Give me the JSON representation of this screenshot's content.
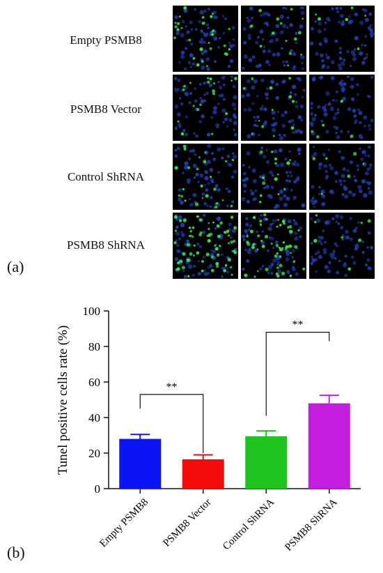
{
  "panel_a": {
    "tag": "(a)",
    "rows": [
      {
        "label": "Empty PSMB8",
        "green": [
          28,
          14,
          6
        ]
      },
      {
        "label": "PSMB8 Vector",
        "green": [
          18,
          12,
          5
        ]
      },
      {
        "label": "Control ShRNA",
        "green": [
          24,
          14,
          6
        ]
      },
      {
        "label": "PSMB8 ShRNA",
        "green": [
          70,
          55,
          8
        ]
      }
    ],
    "colors": {
      "background": "#000000",
      "nuclei_blue": "#1f3fb0",
      "tunel_green": "#38e04a"
    }
  },
  "panel_b": {
    "tag": "(b)"
  },
  "chart_data": {
    "type": "bar",
    "categories": [
      "Empty PSMB8",
      "PSMB8 Vector",
      "Control ShRNA",
      "PSMB8 ShRNA"
    ],
    "values": [
      28,
      16.5,
      29.5,
      48
    ],
    "errors": [
      2.5,
      2.5,
      3,
      4.5
    ],
    "colors": [
      "#0a14f5",
      "#f50a0a",
      "#1fc41f",
      "#c31ee0"
    ],
    "title": "",
    "xlabel": "",
    "ylabel": "Tunel positive cells rate (%)",
    "ylim": [
      0,
      100
    ],
    "yticks": [
      0,
      20,
      40,
      60,
      80,
      100
    ],
    "grid": false,
    "significance": [
      {
        "from": 0,
        "to": 1,
        "label": "**",
        "y": 53,
        "left_drop": 45,
        "right_drop": 20
      },
      {
        "from": 2,
        "to": 3,
        "label": "**",
        "y": 88,
        "left_drop": 41,
        "right_drop": 83
      }
    ]
  }
}
